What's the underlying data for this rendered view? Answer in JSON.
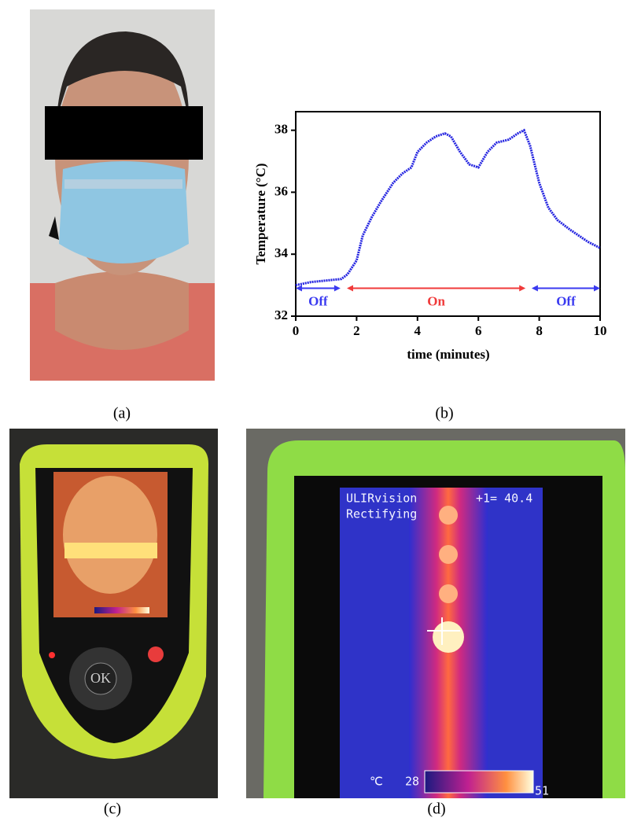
{
  "captions": [
    "(a)",
    "(b)",
    "(c)",
    "(d)"
  ],
  "photo_c": {
    "button": "OK"
  },
  "photo_d": {
    "brand": "ULIRvision",
    "status": "Rectifying",
    "reading": "+1= 40.4",
    "unit": "℃",
    "scale_min": "28",
    "scale_max": "51"
  },
  "chart_data": {
    "type": "line",
    "x_label": "time (minutes)",
    "y_label": "Temperature (°C)",
    "x": [
      0,
      0.5,
      1.0,
      1.5,
      1.7,
      2.0,
      2.2,
      2.5,
      2.8,
      3.0,
      3.2,
      3.5,
      3.8,
      4.0,
      4.3,
      4.6,
      4.9,
      5.1,
      5.4,
      5.7,
      6.0,
      6.3,
      6.6,
      7.0,
      7.3,
      7.5,
      7.7,
      8.0,
      8.3,
      8.6,
      9.0,
      9.3,
      9.6,
      10.0
    ],
    "series": [
      {
        "color": "#2323e0",
        "values": [
          33.0,
          33.1,
          33.15,
          33.2,
          33.35,
          33.8,
          34.6,
          35.2,
          35.7,
          36.0,
          36.3,
          36.6,
          36.8,
          37.3,
          37.6,
          37.8,
          37.9,
          37.8,
          37.3,
          36.9,
          36.8,
          37.3,
          37.6,
          37.7,
          37.9,
          38.0,
          37.5,
          36.3,
          35.5,
          35.1,
          34.8,
          34.6,
          34.4,
          34.2
        ]
      }
    ],
    "annotations": [
      {
        "text": "Off",
        "x": [
          0,
          1.47
        ],
        "y": 32.9,
        "color": "#3a3af0"
      },
      {
        "text": "On",
        "x": [
          1.68,
          7.55
        ],
        "y": 32.9,
        "color": "#f03a3a"
      },
      {
        "text": "Off",
        "x": [
          7.75,
          10
        ],
        "y": 32.9,
        "color": "#3a3af0"
      }
    ],
    "xlim": [
      0,
      10
    ],
    "xticks": [
      0,
      2,
      4,
      6,
      8,
      10
    ],
    "ylim": [
      32,
      38.6
    ],
    "yticks": [
      32,
      34,
      36,
      38
    ]
  }
}
